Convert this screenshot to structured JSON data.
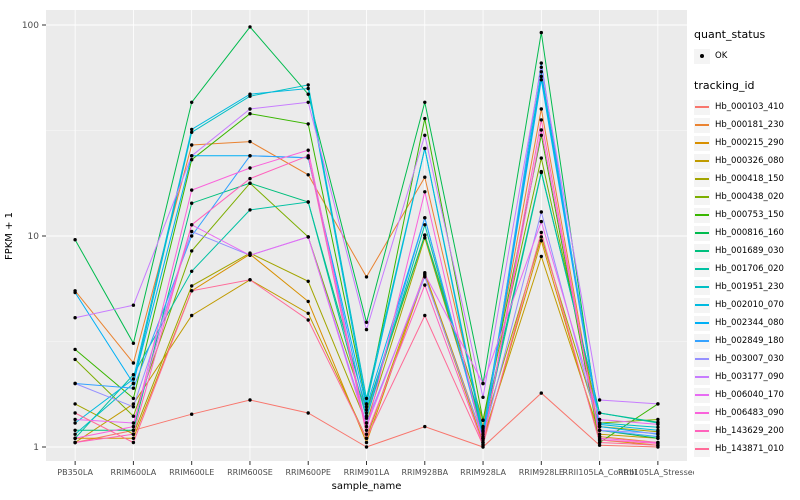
{
  "chart_data": {
    "type": "line",
    "title": "",
    "xlabel": "sample_name",
    "ylabel": "FPKM + 1",
    "y_scale": "log10",
    "y_ticks": [
      1,
      10,
      100
    ],
    "y_minor_ticks": [
      3.162,
      31.62
    ],
    "ylim": [
      1,
      117
    ],
    "legend_position": "right",
    "grid": "white major and minor gridlines on gray panel",
    "categories": [
      "PB350LA",
      "RRIM600LA",
      "RRIM600LE",
      "RRIM600SE",
      "RRIM600PE",
      "RRIM901LA",
      "RRIM928BA",
      "RRIM928LA",
      "RRIM928LE",
      "RRII105LA_Control",
      "RRII105LA_Stressed"
    ],
    "series": [
      {
        "name": "Hb_000103_410",
        "color": "#F8766D",
        "values": [
          1.05,
          1.2,
          1.43,
          1.67,
          1.45,
          1.0,
          1.25,
          1.0,
          1.8,
          1.02,
          1.0
        ]
      },
      {
        "name": "Hb_000181_230",
        "color": "#EA8331",
        "values": [
          5.5,
          2.5,
          27,
          28,
          19.5,
          6.4,
          19,
          1.25,
          40,
          1.12,
          1.05
        ]
      },
      {
        "name": "Hb_000215_290",
        "color": "#D89000",
        "values": [
          1.1,
          1.1,
          5.5,
          8.2,
          4.9,
          1.05,
          6.5,
          1.05,
          9.5,
          1.08,
          1.02
        ]
      },
      {
        "name": "Hb_000326_080",
        "color": "#C09B00",
        "values": [
          1.05,
          1.6,
          4.2,
          6.2,
          4.3,
          1.1,
          6.7,
          1.1,
          8.0,
          1.15,
          1.1
        ]
      },
      {
        "name": "Hb_000418_150",
        "color": "#A3A500",
        "values": [
          1.6,
          1.15,
          5.8,
          8.3,
          6.1,
          1.3,
          9.8,
          1.2,
          9.9,
          1.25,
          1.18
        ]
      },
      {
        "name": "Hb_000438_020",
        "color": "#7CAE00",
        "values": [
          2.6,
          1.4,
          8.5,
          17.8,
          9.9,
          1.45,
          10.1,
          1.34,
          23.4,
          1.3,
          1.35
        ]
      },
      {
        "name": "Hb_000753_150",
        "color": "#39B600",
        "values": [
          2.9,
          1.7,
          23,
          38,
          34,
          1.6,
          36,
          1.34,
          30,
          1.05,
          1.6
        ]
      },
      {
        "name": "Hb_000816_160",
        "color": "#00BB4E",
        "values": [
          9.6,
          3.1,
          43,
          98,
          47,
          3.9,
          43,
          2.0,
          92,
          1.2,
          1.1
        ]
      },
      {
        "name": "Hb_001689_030",
        "color": "#00BF7D",
        "values": [
          1.2,
          1.2,
          14.3,
          17.8,
          14.5,
          1.5,
          10.1,
          1.23,
          20.2,
          1.45,
          1.31
        ]
      },
      {
        "name": "Hb_001706_020",
        "color": "#00C1A3",
        "values": [
          1.1,
          2.2,
          6.8,
          13.3,
          14.5,
          1.37,
          11.3,
          1.15,
          20,
          1.45,
          1.3
        ]
      },
      {
        "name": "Hb_001951_230",
        "color": "#00BFC4",
        "values": [
          1.15,
          2.0,
          31,
          46,
          52,
          1.7,
          26,
          1.12,
          60,
          1.3,
          1.24
        ]
      },
      {
        "name": "Hb_002010_070",
        "color": "#00BAE0",
        "values": [
          1.3,
          2.1,
          32,
          47,
          50,
          1.6,
          26,
          1.18,
          57,
          1.28,
          1.2
        ]
      },
      {
        "name": "Hb_002344_080",
        "color": "#00B0F6",
        "values": [
          5.4,
          2.0,
          24,
          24,
          23.5,
          1.55,
          12.2,
          1.1,
          55,
          1.25,
          1.15
        ]
      },
      {
        "name": "Hb_002849_180",
        "color": "#35A2FF",
        "values": [
          2.0,
          1.9,
          10,
          24,
          23.5,
          1.4,
          12.2,
          1.08,
          66,
          1.2,
          1.12
        ]
      },
      {
        "name": "Hb_003007_030",
        "color": "#9590FF",
        "values": [
          2.0,
          1.55,
          10.5,
          8.1,
          9.9,
          1.3,
          6.4,
          1.1,
          13,
          1.2,
          1.16
        ]
      },
      {
        "name": "Hb_003177_090",
        "color": "#C77CFF",
        "values": [
          4.1,
          4.7,
          24,
          40,
          43,
          3.6,
          30,
          1.72,
          63,
          1.67,
          1.6
        ]
      },
      {
        "name": "Hb_006040_170",
        "color": "#E76BF3",
        "values": [
          1.35,
          1.3,
          11.3,
          8.1,
          9.9,
          1.25,
          6.6,
          2.0,
          11.7,
          1.35,
          1.28
        ]
      },
      {
        "name": "Hb_006483_090",
        "color": "#FA62DB",
        "values": [
          1.1,
          1.25,
          16.5,
          21,
          25.5,
          1.2,
          16.2,
          1.05,
          31.8,
          1.1,
          1.05
        ]
      },
      {
        "name": "Hb_143629_200",
        "color": "#FF62BC",
        "values": [
          1.05,
          1.15,
          11.3,
          18.7,
          24,
          1.15,
          5.85,
          1.03,
          35.5,
          1.08,
          1.04
        ]
      },
      {
        "name": "Hb_143871_010",
        "color": "#FF6A98",
        "values": [
          1.45,
          1.05,
          5.5,
          6.2,
          4.0,
          1.1,
          4.2,
          1.02,
          10.4,
          1.05,
          1.02
        ]
      }
    ]
  },
  "legend": {
    "quant_status_title": "quant_status",
    "quant_status_items": [
      {
        "label": "OK",
        "marker": "black-point"
      }
    ],
    "tracking_id_title": "tracking_id"
  },
  "colors": {
    "panel_bg": "#EBEBEB",
    "grid_major": "#FFFFFF",
    "grid_minor": "#F5F5F5",
    "tick_label": "#4D4D4D",
    "axis_title": "#000000",
    "point": "#000000",
    "page_bg": "#FFFFFF",
    "legend_key_bg": "#F4F4F4"
  }
}
